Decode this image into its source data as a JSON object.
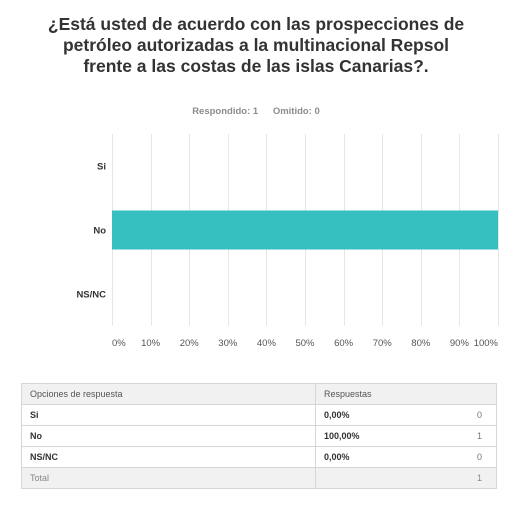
{
  "chart_data": {
    "type": "bar",
    "orientation": "horizontal",
    "title": "¿Está usted de acuerdo con las prospecciones de petróleo autorizadas a la multinacional Repsol frente a las costas de las islas Canarias?.",
    "categories": [
      "Si",
      "No",
      "NS/NC"
    ],
    "values": [
      0,
      100,
      0
    ],
    "xlim": [
      0,
      100
    ],
    "xticks": [
      "0%",
      "10%",
      "20%",
      "30%",
      "40%",
      "50%",
      "60%",
      "70%",
      "80%",
      "90%",
      "100%"
    ],
    "bar_color": "#35bfbf",
    "grid": true
  },
  "stats": {
    "answered": "Respondido: 1",
    "skipped": "Omitido: 0"
  },
  "table": {
    "headers": [
      "Opciones de respuesta",
      "Respuestas",
      ""
    ],
    "rows": [
      {
        "option": "Si",
        "percent": "0,00%",
        "count": "0"
      },
      {
        "option": "No",
        "percent": "100,00%",
        "count": "1"
      },
      {
        "option": "NS/NC",
        "percent": "0,00%",
        "count": "0"
      }
    ],
    "total": {
      "label": "Total",
      "count": "1"
    }
  }
}
